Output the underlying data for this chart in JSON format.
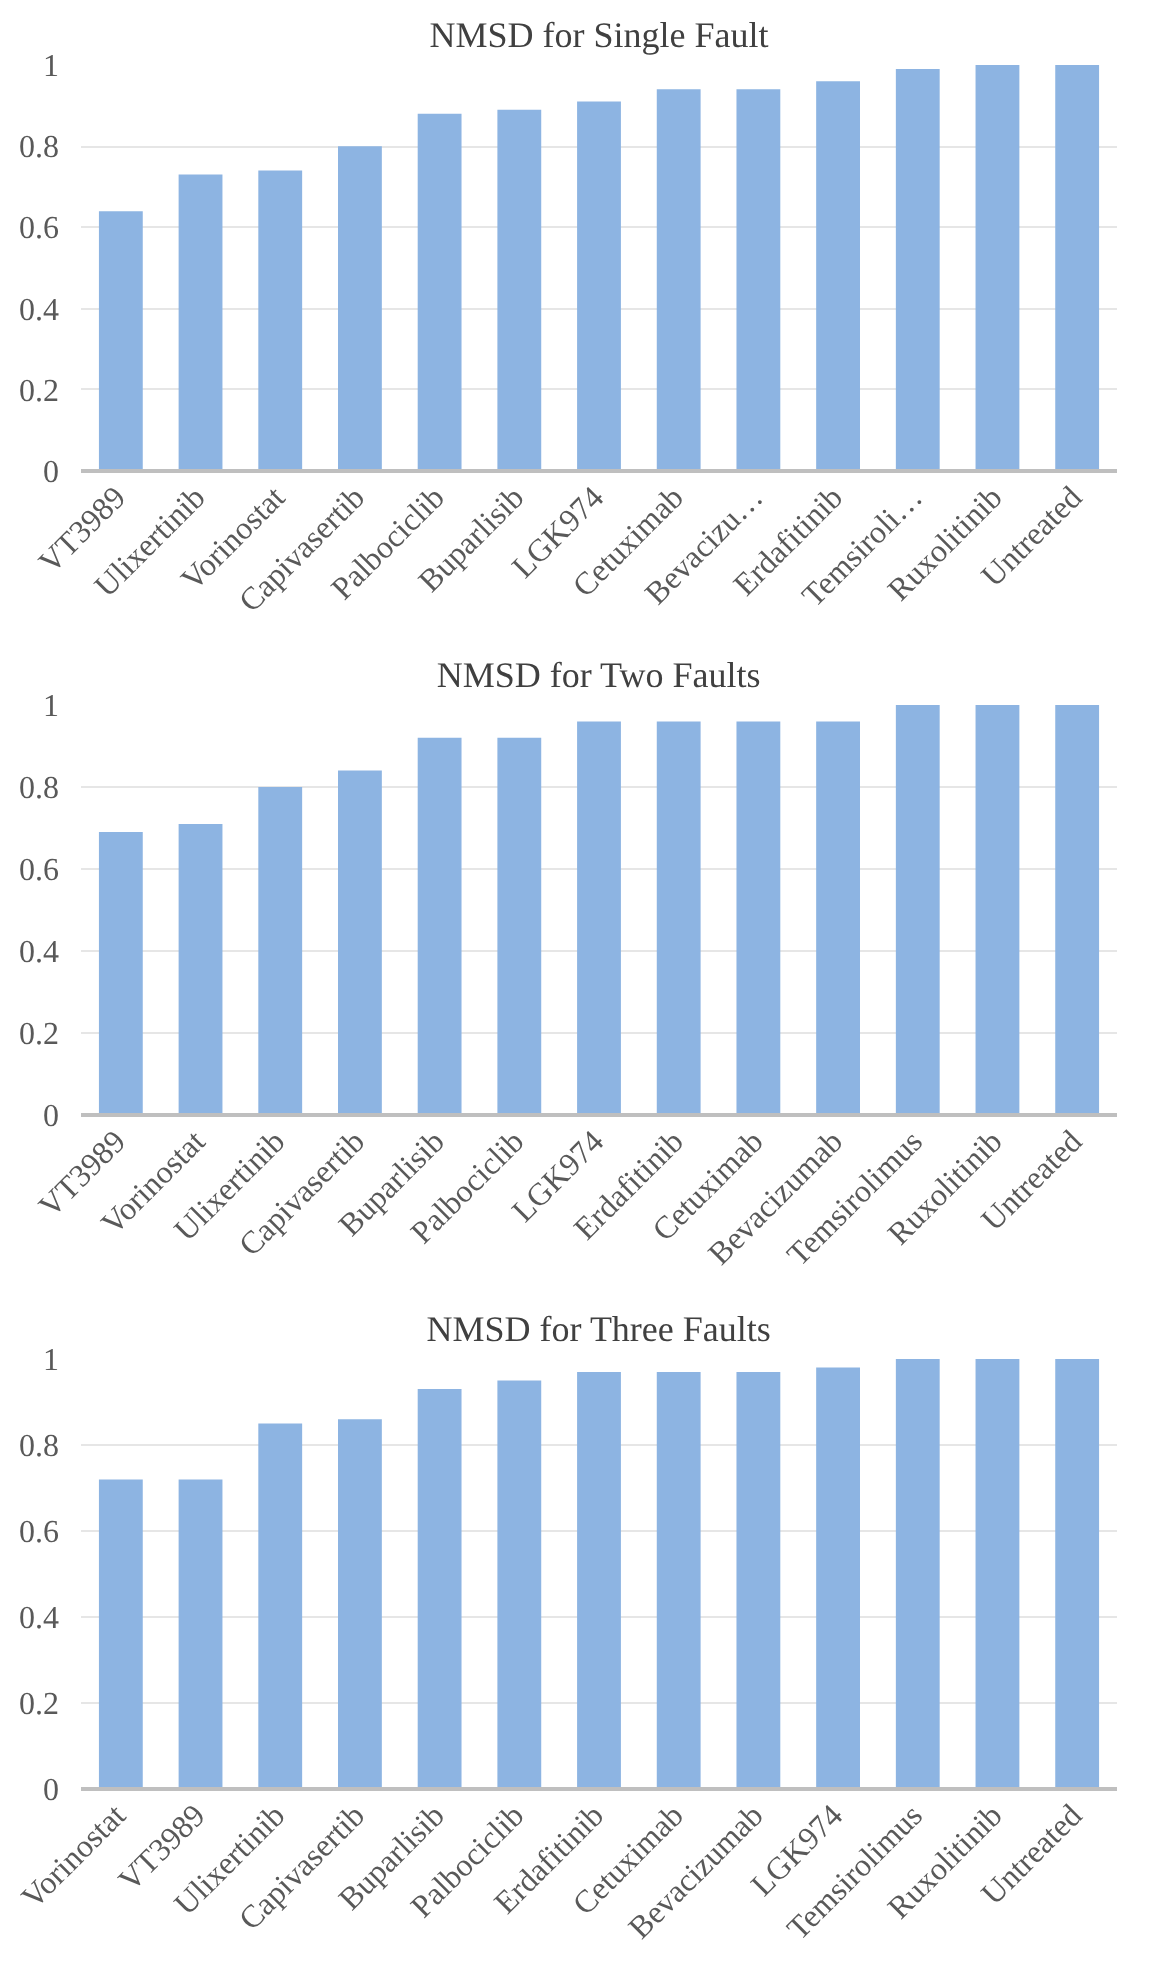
{
  "chart_data": [
    {
      "type": "bar",
      "title": "NMSD for Single Fault",
      "categories": [
        "VT3989",
        "Ulixertinib",
        "Vorinostat",
        "Capivasertib",
        "Palbociclib",
        "Buparlisib",
        "LGK974",
        "Cetuximab",
        "Bevacizu…",
        "Erdafitinib",
        "Temsiroli…",
        "Ruxolitinib",
        "Untreated"
      ],
      "values": [
        0.64,
        0.73,
        0.74,
        0.8,
        0.88,
        0.89,
        0.91,
        0.94,
        0.94,
        0.96,
        0.99,
        1.0,
        1.0
      ],
      "color": "#8db4e2",
      "ylim": [
        0,
        1
      ],
      "yticks": [
        0,
        0.2,
        0.4,
        0.6,
        0.8,
        1
      ],
      "grid": "y"
    },
    {
      "type": "bar",
      "title": "NMSD for Two Faults",
      "categories": [
        "VT3989",
        "Vorinostat",
        "Ulixertinib",
        "Capivasertib",
        "Buparlisib",
        "Palbociclib",
        "LGK974",
        "Erdafitinib",
        "Cetuximab",
        "Bevacizumab",
        "Temsirolimus",
        "Ruxolitinib",
        "Untreated"
      ],
      "values": [
        0.69,
        0.71,
        0.8,
        0.84,
        0.92,
        0.92,
        0.96,
        0.96,
        0.96,
        0.96,
        1.0,
        1.0,
        1.0
      ],
      "color": "#8db4e2",
      "ylim": [
        0,
        1
      ],
      "yticks": [
        0,
        0.2,
        0.4,
        0.6,
        0.8,
        1
      ],
      "grid": "y"
    },
    {
      "type": "bar",
      "title": "NMSD for Three Faults",
      "categories": [
        "Vorinostat",
        "VT3989",
        "Ulixertinib",
        "Capivasertib",
        "Buparlisib",
        "Palbociclib",
        "Erdafitinib",
        "Cetuximab",
        "Bevacizumab",
        "LGK974",
        "Temsirolimus",
        "Ruxolitinib",
        "Untreated"
      ],
      "values": [
        0.72,
        0.72,
        0.85,
        0.86,
        0.93,
        0.95,
        0.97,
        0.97,
        0.97,
        0.98,
        1.0,
        1.0,
        1.0
      ],
      "color": "#8db4e2",
      "ylim": [
        0,
        1
      ],
      "yticks": [
        0,
        0.2,
        0.4,
        0.6,
        0.8,
        1
      ],
      "grid": "y"
    }
  ]
}
